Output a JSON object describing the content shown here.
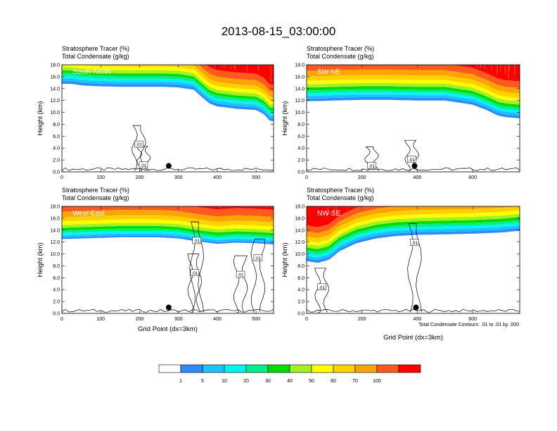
{
  "title": "2013-08-15_03:00:00",
  "colors": {
    "levels": [
      "#ffffff",
      "#2b8cff",
      "#1ec1ff",
      "#00f5f0",
      "#00ee8c",
      "#00dd00",
      "#a6f022",
      "#ffff00",
      "#ffd000",
      "#ffa300",
      "#ff5a1e",
      "#ff0000"
    ]
  },
  "chart_data": [
    {
      "type": "heatmap",
      "panel_name": "South-North",
      "label_left": "Stratosphere Tracer   (%)",
      "label_left2": "Total Condensate   (g/kg)",
      "ylabel": "Height (km)",
      "xlabel": "",
      "xlim": [
        0,
        545
      ],
      "ylim": [
        0,
        18
      ],
      "xticks": [
        0,
        100,
        200,
        300,
        400,
        500
      ],
      "yticks": [
        "0.0",
        "2.0",
        "4.0",
        "6.0",
        "8.0",
        "10.0",
        "12.0",
        "14.0",
        "16.0",
        "18.0"
      ],
      "tracer_base_km": [
        [
          0,
          14.8
        ],
        [
          25,
          14.8
        ],
        [
          45,
          14.6
        ],
        [
          60,
          14.5
        ],
        [
          90,
          14.4
        ],
        [
          150,
          14.3
        ],
        [
          200,
          14.3
        ],
        [
          260,
          14.3
        ],
        [
          300,
          14.2
        ],
        [
          340,
          13.8
        ],
        [
          360,
          12.6
        ],
        [
          380,
          11.5
        ],
        [
          400,
          11.0
        ],
        [
          450,
          10.6
        ],
        [
          500,
          10.4
        ],
        [
          520,
          9.7
        ],
        [
          535,
          8.6
        ],
        [
          545,
          8.5
        ]
      ],
      "band_thickness_km": [
        0.45,
        0.45,
        0.45,
        0.45,
        0.45,
        0.55,
        0.6,
        0.7,
        0.9,
        1.1,
        1.5
      ],
      "condensate_label": ".01",
      "contour_label_points": [
        [
          198,
          4.6
        ],
        [
          210,
          1.1
        ]
      ],
      "marker": [
        275,
        1.0
      ]
    },
    {
      "type": "heatmap",
      "panel_name": "SW-NE",
      "label_left": "Stratosphere Tracer   (%)",
      "label_left2": "Total Condensate   (g/kg)",
      "ylabel": "Height (km)",
      "xlabel": "",
      "xlim": [
        0,
        770
      ],
      "ylim": [
        0,
        18
      ],
      "xticks": [
        0,
        200,
        400,
        600
      ],
      "yticks": [
        "0.0",
        "2.0",
        "4.0",
        "6.0",
        "8.0",
        "10.0",
        "12.0",
        "14.0",
        "16.0",
        "18.0"
      ],
      "tracer_base_km": [
        [
          0,
          11.9
        ],
        [
          40,
          11.9
        ],
        [
          100,
          12.0
        ],
        [
          200,
          12.1
        ],
        [
          300,
          12.1
        ],
        [
          400,
          12.0
        ],
        [
          500,
          12.0
        ],
        [
          600,
          11.3
        ],
        [
          650,
          10.4
        ],
        [
          690,
          9.5
        ],
        [
          720,
          9.2
        ],
        [
          770,
          9.0
        ]
      ],
      "band_thickness_km": [
        0.45,
        0.45,
        0.45,
        0.45,
        0.5,
        0.55,
        0.6,
        0.75,
        0.9,
        1.1,
        1.5
      ],
      "condensate_label": ".01",
      "contour_label_points": [
        [
          235,
          1.0
        ],
        [
          380,
          2.1
        ]
      ],
      "marker": [
        390,
        1.0
      ]
    },
    {
      "type": "heatmap",
      "panel_name": "West-East",
      "label_left": "Stratosphere Tracer   (%)",
      "label_left2": "Total Condensate   (g/kg)",
      "ylabel": "Height (km)",
      "xlabel": "Grid Point (dx=3km)",
      "xlim": [
        0,
        545
      ],
      "ylim": [
        0,
        18
      ],
      "xticks": [
        0,
        100,
        200,
        300,
        400,
        500
      ],
      "yticks": [
        "0.0",
        "2.0",
        "4.0",
        "6.0",
        "8.0",
        "10.0",
        "12.0",
        "14.0",
        "16.0",
        "18.0"
      ],
      "tracer_base_km": [
        [
          0,
          12.5
        ],
        [
          50,
          12.6
        ],
        [
          150,
          12.8
        ],
        [
          250,
          12.8
        ],
        [
          300,
          12.6
        ],
        [
          350,
          12.1
        ],
        [
          400,
          11.7
        ],
        [
          450,
          11.9
        ],
        [
          500,
          11.8
        ],
        [
          545,
          11.6
        ]
      ],
      "band_thickness_km": [
        0.3,
        0.35,
        0.4,
        0.4,
        0.45,
        0.5,
        0.6,
        0.7,
        0.9,
        1.2,
        1.6
      ],
      "condensate_label": ".01",
      "contour_label_points": [
        [
          347,
          12.2
        ],
        [
          342,
          6.8
        ],
        [
          460,
          6.5
        ],
        [
          505,
          9.3
        ]
      ],
      "marker": [
        275,
        1.0
      ]
    },
    {
      "type": "heatmap",
      "panel_name": "NW-SE",
      "label_left": "Stratosphere Tracer   (%)",
      "label_left2": "Total Condensate   (g/kg)",
      "ylabel": "Height (km)",
      "xlabel": "Grid Point (dx=3km)",
      "xlim": [
        0,
        770
      ],
      "ylim": [
        0,
        18
      ],
      "xticks": [
        0,
        200,
        400,
        600
      ],
      "yticks": [
        "0.0",
        "2.0",
        "4.0",
        "6.0",
        "8.0",
        "10.0",
        "12.0",
        "14.0",
        "16.0",
        "18.0"
      ],
      "tracer_base_km": [
        [
          0,
          8.8
        ],
        [
          40,
          8.5
        ],
        [
          80,
          9.0
        ],
        [
          120,
          10.5
        ],
        [
          180,
          11.8
        ],
        [
          250,
          12.6
        ],
        [
          320,
          13.0
        ],
        [
          400,
          13.2
        ],
        [
          500,
          13.3
        ],
        [
          600,
          13.4
        ],
        [
          700,
          13.6
        ],
        [
          770,
          13.9
        ]
      ],
      "band_thickness_km": [
        0.45,
        0.45,
        0.45,
        0.45,
        0.5,
        0.55,
        0.6,
        0.7,
        0.85,
        1.0,
        1.3
      ],
      "condensate_label": ".01",
      "contour_label_points": [
        [
          390,
          11.9
        ],
        [
          55,
          4.4
        ]
      ],
      "marker": [
        395,
        1.0
      ]
    }
  ],
  "contour_note": "Total Condensate Contours: .01 to .01 by .000",
  "colorbar": {
    "labels": [
      "1",
      "5",
      "10",
      "20",
      "30",
      "40",
      "50",
      "60",
      "70",
      "100"
    ]
  }
}
